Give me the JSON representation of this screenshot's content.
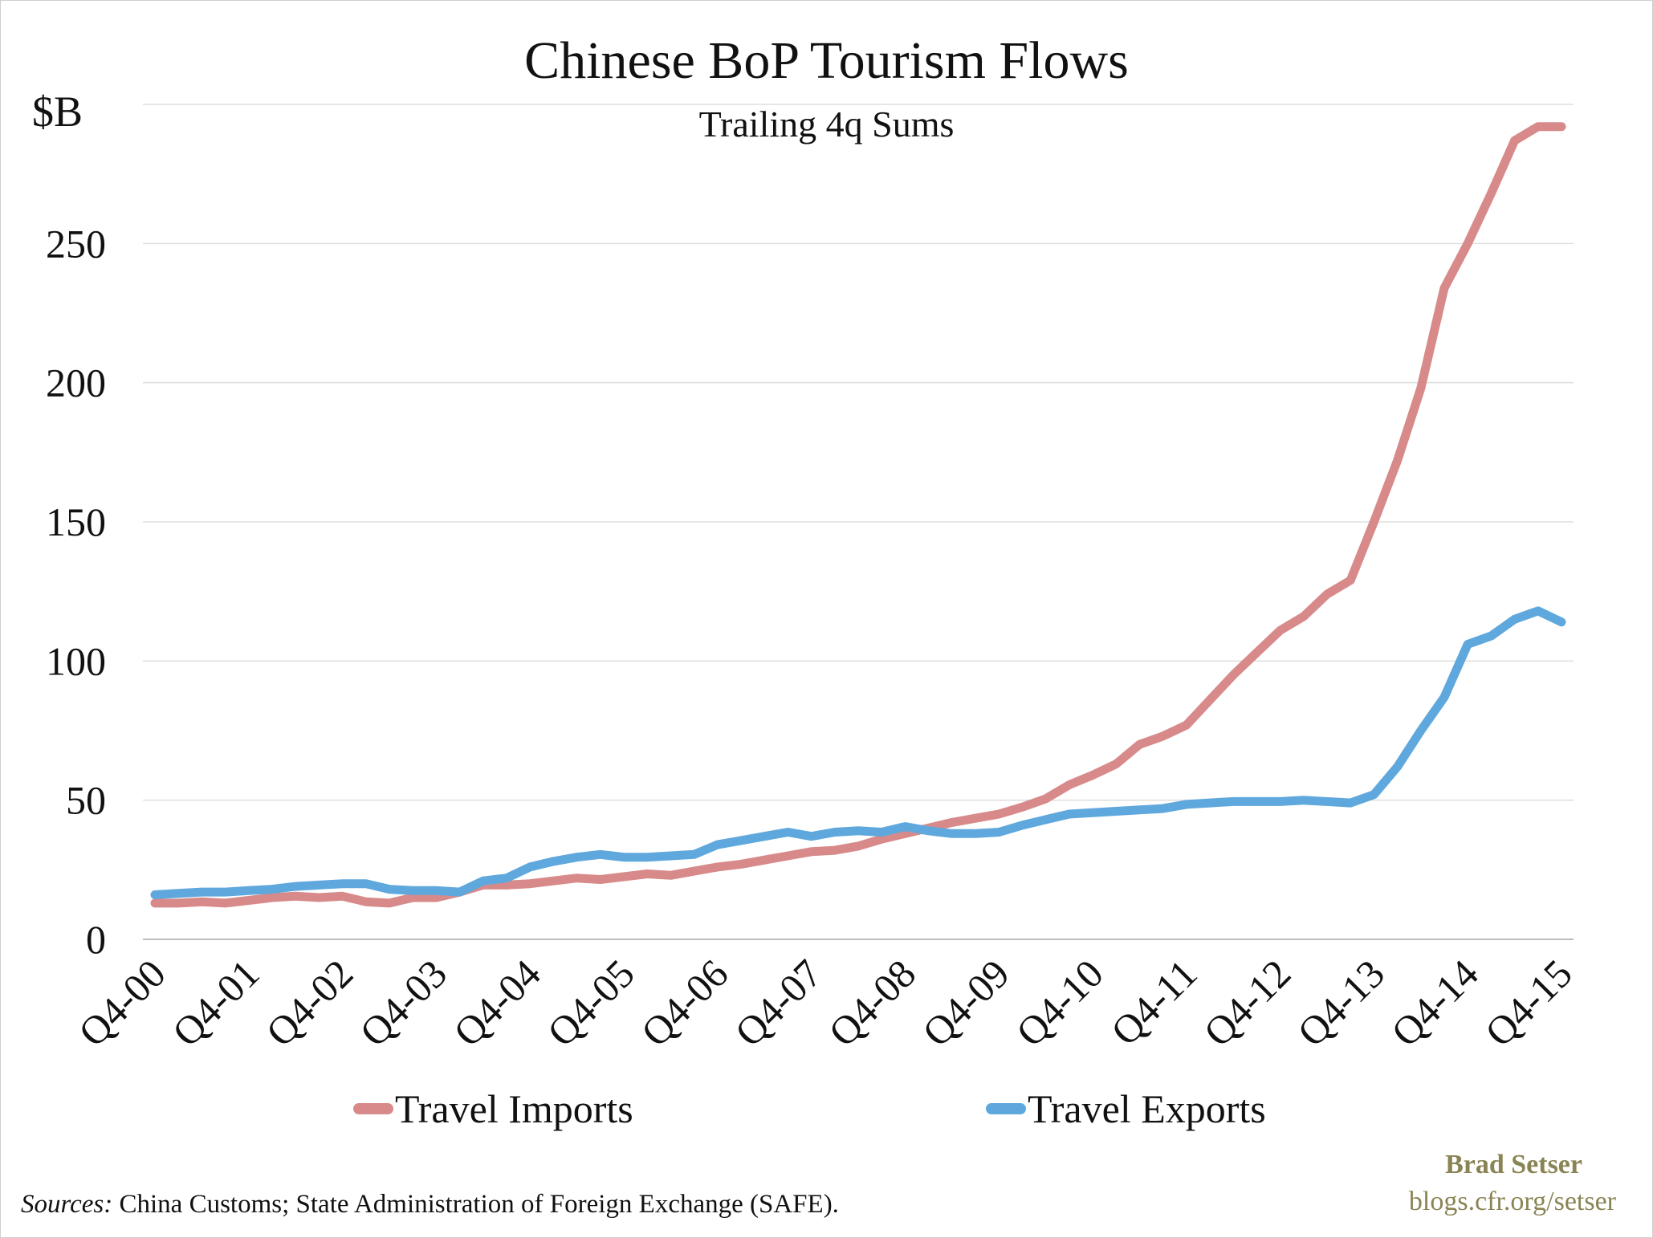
{
  "chart_data": {
    "type": "line",
    "title": "Chinese BoP Tourism Flows",
    "subtitle": "Trailing 4q Sums",
    "ylabel": "$B",
    "ylim": [
      0,
      300
    ],
    "yticks": [
      0,
      50,
      100,
      150,
      200,
      250
    ],
    "grid": true,
    "legend_position": "bottom",
    "x": [
      "Q4-00",
      "Q1-01",
      "Q2-01",
      "Q3-01",
      "Q4-01",
      "Q1-02",
      "Q2-02",
      "Q3-02",
      "Q4-02",
      "Q1-03",
      "Q2-03",
      "Q3-03",
      "Q4-03",
      "Q1-04",
      "Q2-04",
      "Q3-04",
      "Q4-04",
      "Q1-05",
      "Q2-05",
      "Q3-05",
      "Q4-05",
      "Q1-06",
      "Q2-06",
      "Q3-06",
      "Q4-06",
      "Q1-07",
      "Q2-07",
      "Q3-07",
      "Q4-07",
      "Q1-08",
      "Q2-08",
      "Q3-08",
      "Q4-08",
      "Q1-09",
      "Q2-09",
      "Q3-09",
      "Q4-09",
      "Q1-10",
      "Q2-10",
      "Q3-10",
      "Q4-10",
      "Q1-11",
      "Q2-11",
      "Q3-11",
      "Q4-11",
      "Q1-12",
      "Q2-12",
      "Q3-12",
      "Q4-12",
      "Q1-13",
      "Q2-13",
      "Q3-13",
      "Q4-13",
      "Q1-14",
      "Q2-14",
      "Q3-14",
      "Q4-14",
      "Q1-15",
      "Q2-15",
      "Q3-15",
      "Q4-15"
    ],
    "xtick_labels": [
      "Q4-00",
      "Q4-01",
      "Q4-02",
      "Q4-03",
      "Q4-04",
      "Q4-05",
      "Q4-06",
      "Q4-07",
      "Q4-08",
      "Q4-09",
      "Q4-10",
      "Q4-11",
      "Q4-12",
      "Q4-13",
      "Q4-14",
      "Q4-15"
    ],
    "series": [
      {
        "name": "Travel Imports",
        "color": "#d88a8a",
        "values": [
          13,
          13,
          13.5,
          13,
          14,
          15,
          15.5,
          15,
          15.5,
          13.5,
          13,
          15,
          15,
          17,
          19.5,
          19.5,
          20,
          21,
          22,
          21.5,
          22.5,
          23.5,
          23,
          24.5,
          26,
          27,
          28.5,
          30,
          31.5,
          32,
          33.5,
          36,
          38,
          40,
          42,
          43.5,
          45,
          47.5,
          50.5,
          55.5,
          59,
          63,
          70,
          73,
          77,
          86,
          95,
          103,
          111,
          116,
          124,
          129,
          150,
          172,
          198,
          234,
          250,
          268,
          287,
          292,
          292
        ]
      },
      {
        "name": "Travel Exports",
        "color": "#5fa8dd",
        "values": [
          16,
          16.5,
          17,
          17,
          17.5,
          18,
          19,
          19.5,
          20,
          20,
          18,
          17.5,
          17.5,
          17,
          21,
          22,
          26,
          28,
          29.5,
          30.5,
          29.5,
          29.5,
          30,
          30.5,
          34,
          35.5,
          37,
          38.5,
          37,
          38.5,
          39,
          38.5,
          40.5,
          39,
          38,
          38,
          38.5,
          41,
          43,
          45,
          45.5,
          46,
          46.5,
          47,
          48.5,
          49,
          49.5,
          49.5,
          49.5,
          50,
          49.5,
          49,
          52,
          62,
          75,
          87,
          106,
          109,
          115,
          118,
          114
        ]
      }
    ]
  },
  "legend": {
    "imports_label": "Travel Imports",
    "exports_label": "Travel Exports"
  },
  "footer": {
    "sources_label": "Sources:",
    "sources_text": " China Customs; State Administration of Foreign Exchange (SAFE).",
    "credit_name": "Brad Setser",
    "credit_url": "blogs.cfr.org/setser"
  }
}
